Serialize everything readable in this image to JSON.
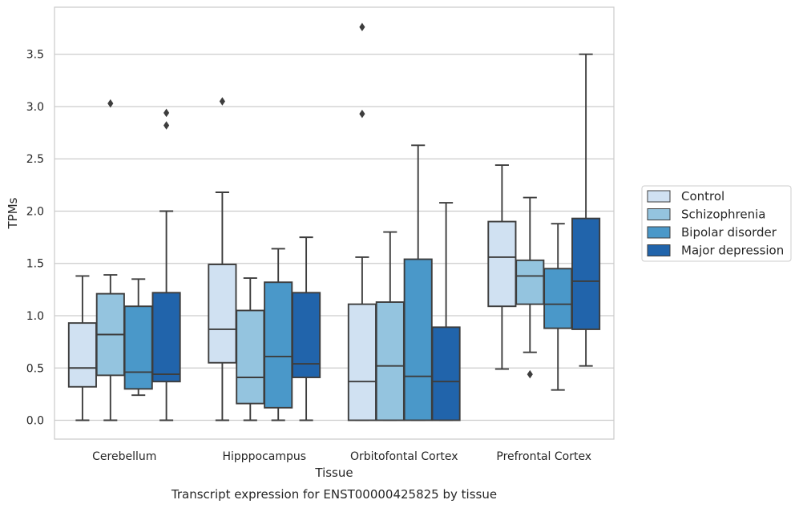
{
  "chart_data": {
    "type": "box",
    "title": "Transcript expression for ENST00000425825 by tissue",
    "xlabel": "Tissue",
    "ylabel": "TPMs",
    "ylim": [
      -0.18,
      3.95
    ],
    "yticks": [
      0.0,
      0.5,
      1.0,
      1.5,
      2.0,
      2.5,
      3.0,
      3.5
    ],
    "ytick_labels": [
      "0.0",
      "0.5",
      "1.0",
      "1.5",
      "2.0",
      "2.5",
      "3.0",
      "3.5"
    ],
    "grid": "horizontal",
    "legend_placement": "outside-right",
    "categories": [
      "Cerebellum",
      "Hipppocampus",
      "Orbitofontal Cortex",
      "Prefrontal Cortex"
    ],
    "series": [
      {
        "name": "Control",
        "color": "#d0e1f2",
        "boxes": [
          {
            "whislo": 0.0,
            "q1": 0.32,
            "med": 0.5,
            "q3": 0.93,
            "whishi": 1.38,
            "fliers": []
          },
          {
            "whislo": 0.0,
            "q1": 0.55,
            "med": 0.87,
            "q3": 1.49,
            "whishi": 2.18,
            "fliers": [
              3.05
            ]
          },
          {
            "whislo": 0.0,
            "q1": 0.0,
            "med": 0.37,
            "q3": 1.11,
            "whishi": 1.56,
            "fliers": [
              2.93,
              3.76
            ]
          },
          {
            "whislo": 0.49,
            "q1": 1.09,
            "med": 1.56,
            "q3": 1.9,
            "whishi": 2.44,
            "fliers": []
          }
        ]
      },
      {
        "name": "Schizophrenia",
        "color": "#94c4df",
        "boxes": [
          {
            "whislo": 0.0,
            "q1": 0.43,
            "med": 0.82,
            "q3": 1.21,
            "whishi": 1.39,
            "fliers": [
              3.03
            ]
          },
          {
            "whislo": 0.0,
            "q1": 0.16,
            "med": 0.41,
            "q3": 1.05,
            "whishi": 1.36,
            "fliers": []
          },
          {
            "whislo": 0.0,
            "q1": 0.0,
            "med": 0.52,
            "q3": 1.13,
            "whishi": 1.8,
            "fliers": []
          },
          {
            "whislo": 0.65,
            "q1": 1.11,
            "med": 1.38,
            "q3": 1.53,
            "whishi": 2.13,
            "fliers": [
              0.44
            ]
          }
        ]
      },
      {
        "name": "Bipolar disorder",
        "color": "#4a98c9",
        "boxes": [
          {
            "whislo": 0.24,
            "q1": 0.3,
            "med": 0.46,
            "q3": 1.09,
            "whishi": 1.35,
            "fliers": []
          },
          {
            "whislo": 0.0,
            "q1": 0.12,
            "med": 0.61,
            "q3": 1.32,
            "whishi": 1.64,
            "fliers": []
          },
          {
            "whislo": 0.0,
            "q1": 0.0,
            "med": 0.42,
            "q3": 1.54,
            "whishi": 2.63,
            "fliers": []
          },
          {
            "whislo": 0.29,
            "q1": 0.88,
            "med": 1.11,
            "q3": 1.45,
            "whishi": 1.88,
            "fliers": []
          }
        ]
      },
      {
        "name": "Major depression",
        "color": "#2164ab",
        "boxes": [
          {
            "whislo": 0.0,
            "q1": 0.37,
            "med": 0.44,
            "q3": 1.22,
            "whishi": 2.0,
            "fliers": [
              2.82,
              2.94
            ]
          },
          {
            "whislo": 0.0,
            "q1": 0.41,
            "med": 0.54,
            "q3": 1.22,
            "whishi": 1.75,
            "fliers": []
          },
          {
            "whislo": 0.0,
            "q1": 0.0,
            "med": 0.37,
            "q3": 0.89,
            "whishi": 2.08,
            "fliers": []
          },
          {
            "whislo": 0.52,
            "q1": 0.87,
            "med": 1.33,
            "q3": 1.93,
            "whishi": 3.5,
            "fliers": []
          }
        ]
      }
    ]
  }
}
